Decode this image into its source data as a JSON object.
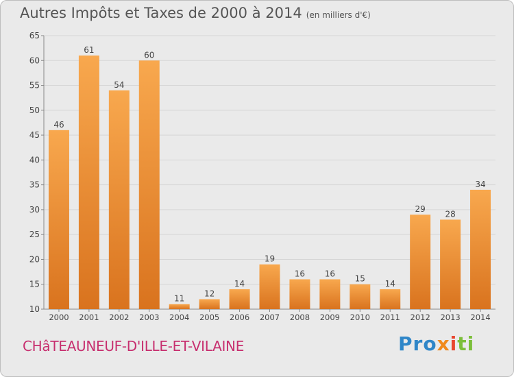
{
  "header": {
    "title": "Autres Impôts et Taxes de 2000 à 2014",
    "subtitle": "(en milliers d'€)"
  },
  "footer": {
    "town": "CHâTEAUNEUF-D'ILLE-ET-VILAINE",
    "logo": {
      "p1": "Pro",
      "p2": "x",
      "p3": "i",
      "p4": "ti"
    }
  },
  "colors": {
    "bar_light": "#f8a84e",
    "bar_dark": "#d9731e",
    "town": "#c72f6f"
  },
  "chart_data": {
    "type": "bar",
    "title": "Autres Impôts et Taxes de 2000 à 2014",
    "subtitle": "(en milliers d'€)",
    "xlabel": "",
    "ylabel": "",
    "categories": [
      "2000",
      "2001",
      "2002",
      "2003",
      "2004",
      "2005",
      "2006",
      "2007",
      "2008",
      "2009",
      "2010",
      "2011",
      "2012",
      "2013",
      "2014"
    ],
    "values": [
      46,
      61,
      54,
      60,
      11,
      12,
      14,
      19,
      16,
      16,
      15,
      14,
      29,
      28,
      34
    ],
    "ylim": [
      10,
      65
    ],
    "yticks": [
      10,
      15,
      20,
      25,
      30,
      35,
      40,
      45,
      50,
      55,
      60,
      65
    ],
    "grid": true,
    "legend": "none"
  }
}
